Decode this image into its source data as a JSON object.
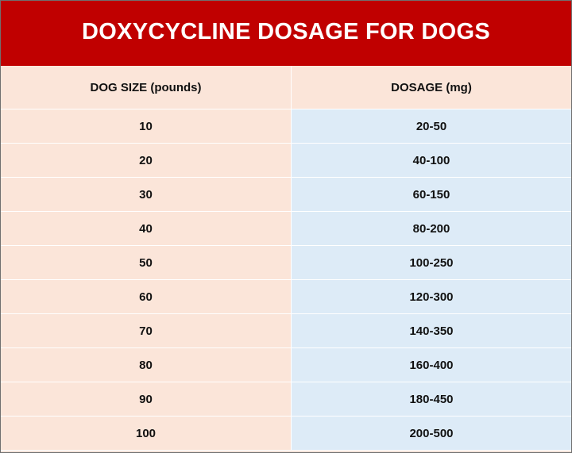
{
  "title": "DOXYCYCLINE DOSAGE FOR DOGS",
  "table": {
    "headers": [
      "DOG SIZE (pounds)",
      "DOSAGE (mg)"
    ],
    "rows": [
      [
        "10",
        "20-50"
      ],
      [
        "20",
        "40-100"
      ],
      [
        "30",
        "60-150"
      ],
      [
        "40",
        "80-200"
      ],
      [
        "50",
        "100-250"
      ],
      [
        "60",
        "120-300"
      ],
      [
        "70",
        "140-350"
      ],
      [
        "80",
        "160-400"
      ],
      [
        "90",
        "180-450"
      ],
      [
        "100",
        "200-500"
      ]
    ]
  },
  "colors": {
    "title_background": "#c00000",
    "title_text": "#ffffff",
    "left_column": "#fbe5d9",
    "right_column": "#ddebf7"
  }
}
